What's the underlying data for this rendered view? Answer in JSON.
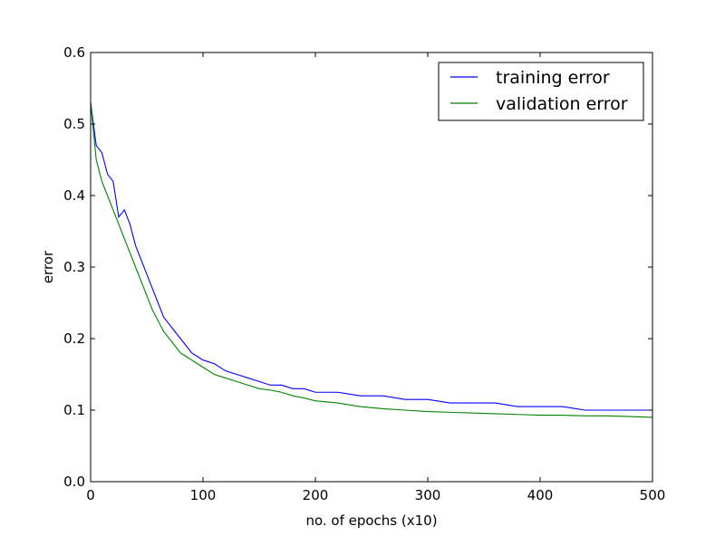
{
  "chart_data": {
    "type": "line",
    "xlabel": "no. of epochs (x10)",
    "ylabel": "error",
    "xlim": [
      0,
      500
    ],
    "ylim": [
      0,
      0.6
    ],
    "x_ticks": [
      "0",
      "100",
      "200",
      "300",
      "400",
      "500"
    ],
    "y_ticks": [
      "0.0",
      "0.1",
      "0.2",
      "0.3",
      "0.4",
      "0.5",
      "0.6"
    ],
    "grid": false,
    "legend": "top-right",
    "series": [
      {
        "name": "training error",
        "color": "#0000ff",
        "x": [
          0,
          5,
          10,
          15,
          20,
          25,
          30,
          35,
          40,
          45,
          50,
          55,
          60,
          65,
          70,
          75,
          80,
          85,
          90,
          95,
          100,
          110,
          120,
          130,
          140,
          150,
          160,
          170,
          180,
          190,
          200,
          220,
          240,
          260,
          280,
          300,
          320,
          340,
          360,
          380,
          400,
          420,
          440,
          460,
          480,
          500
        ],
        "y": [
          0.53,
          0.47,
          0.46,
          0.43,
          0.42,
          0.37,
          0.38,
          0.36,
          0.33,
          0.31,
          0.29,
          0.27,
          0.25,
          0.23,
          0.22,
          0.21,
          0.2,
          0.19,
          0.18,
          0.175,
          0.17,
          0.165,
          0.155,
          0.15,
          0.145,
          0.14,
          0.135,
          0.135,
          0.13,
          0.13,
          0.125,
          0.125,
          0.12,
          0.12,
          0.115,
          0.115,
          0.11,
          0.11,
          0.11,
          0.105,
          0.105,
          0.105,
          0.1,
          0.1,
          0.1,
          0.1
        ]
      },
      {
        "name": "validation error",
        "color": "#008000",
        "x": [
          0,
          5,
          10,
          15,
          20,
          25,
          30,
          35,
          40,
          45,
          50,
          55,
          60,
          65,
          70,
          75,
          80,
          85,
          90,
          95,
          100,
          110,
          120,
          130,
          140,
          150,
          160,
          170,
          180,
          190,
          200,
          220,
          240,
          260,
          280,
          300,
          320,
          340,
          360,
          380,
          400,
          420,
          440,
          460,
          480,
          500
        ],
        "y": [
          0.53,
          0.45,
          0.42,
          0.4,
          0.38,
          0.36,
          0.34,
          0.32,
          0.3,
          0.28,
          0.26,
          0.24,
          0.225,
          0.21,
          0.2,
          0.19,
          0.18,
          0.175,
          0.17,
          0.165,
          0.16,
          0.15,
          0.145,
          0.14,
          0.135,
          0.13,
          0.128,
          0.125,
          0.12,
          0.117,
          0.113,
          0.11,
          0.105,
          0.102,
          0.1,
          0.098,
          0.097,
          0.096,
          0.095,
          0.094,
          0.093,
          0.093,
          0.092,
          0.092,
          0.091,
          0.09
        ]
      }
    ]
  }
}
